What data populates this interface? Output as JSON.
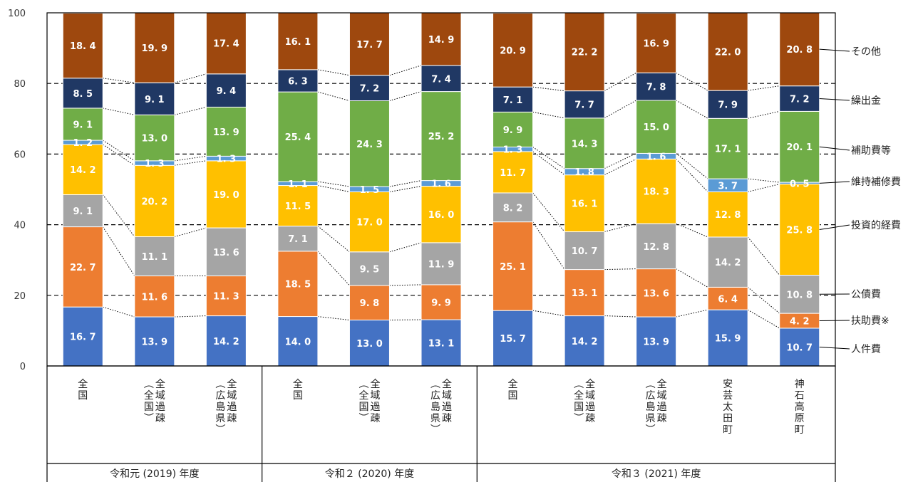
{
  "chart_data": {
    "type": "bar",
    "stacked": true,
    "ylim": [
      0,
      100
    ],
    "yticks": [
      "0",
      "20",
      "40",
      "60",
      "80",
      "100"
    ],
    "gridlines": "dashed",
    "categories": [
      "全国",
      "全域過疎（全国）",
      "全域過疎（広島県）",
      "全国",
      "全域過疎（全国）",
      "全域過疎（広島県）",
      "全国",
      "全域過疎（全国）",
      "全域過疎（広島県）",
      "安芸太田町",
      "神石高原町"
    ],
    "category_lines": [
      [
        "全国"
      ],
      [
        "（全国）",
        "全域過疎"
      ],
      [
        "（広島県）",
        "全域過疎"
      ],
      [
        "全国"
      ],
      [
        "（全国）",
        "全域過疎"
      ],
      [
        "（広島県）",
        "全域過疎"
      ],
      [
        "全国"
      ],
      [
        "（全国）",
        "全域過疎"
      ],
      [
        "（広島県）",
        "全域過疎"
      ],
      [
        "安芸太田町"
      ],
      [
        "神石高原町"
      ]
    ],
    "groups": [
      {
        "label": "令和元 (2019) 年度",
        "start": 0,
        "end": 2
      },
      {
        "label": "令和２ (2020) 年度",
        "start": 3,
        "end": 5
      },
      {
        "label": "令和３ (2021) 年度",
        "start": 6,
        "end": 10
      }
    ],
    "series": [
      {
        "name": "人件費",
        "color": "#4472c4",
        "label_dark": false,
        "values": [
          16.7,
          13.9,
          14.2,
          14.0,
          13.0,
          13.1,
          15.7,
          14.2,
          13.9,
          15.9,
          10.7
        ]
      },
      {
        "name": "扶助費※",
        "color": "#ed7d31",
        "label_dark": false,
        "values": [
          22.7,
          11.6,
          11.3,
          18.5,
          9.8,
          9.9,
          25.1,
          13.1,
          13.6,
          6.4,
          4.2
        ]
      },
      {
        "name": "公債費",
        "color": "#a5a5a5",
        "label_dark": false,
        "values": [
          9.1,
          11.1,
          13.6,
          7.1,
          9.5,
          11.9,
          8.2,
          10.7,
          12.8,
          14.2,
          10.8
        ]
      },
      {
        "name": "投資的経費",
        "color": "#ffc000",
        "label_dark": false,
        "values": [
          14.2,
          20.2,
          19.0,
          11.5,
          17.0,
          16.0,
          11.7,
          16.1,
          18.3,
          12.8,
          25.8
        ]
      },
      {
        "name": "維持補修費",
        "color": "#5b9bd5",
        "label_dark": false,
        "values": [
          1.2,
          1.3,
          1.3,
          1.1,
          1.5,
          1.6,
          1.3,
          1.8,
          1.6,
          3.7,
          0.5
        ]
      },
      {
        "name": "補助費等",
        "color": "#70ad47",
        "label_dark": false,
        "values": [
          9.1,
          13.0,
          13.9,
          25.4,
          24.3,
          25.2,
          9.9,
          14.3,
          15.0,
          17.1,
          20.1
        ]
      },
      {
        "name": "繰出金",
        "color": "#203864",
        "label_dark": false,
        "values": [
          8.5,
          9.1,
          9.4,
          6.3,
          7.2,
          7.4,
          7.1,
          7.7,
          7.8,
          7.9,
          7.2
        ]
      },
      {
        "name": "その他",
        "color": "#9e480e",
        "label_dark": false,
        "values": [
          18.4,
          19.9,
          17.4,
          16.1,
          17.7,
          14.9,
          20.9,
          22.2,
          16.9,
          22.0,
          20.8
        ]
      }
    ],
    "value_labels": [
      [
        "16. 7",
        "13. 9",
        "14. 2",
        "14. 0",
        "13. 0",
        "13. 1",
        "15. 7",
        "14. 2",
        "13. 9",
        "15. 9",
        "10. 7"
      ],
      [
        "22. 7",
        "11. 6",
        "11. 3",
        "18. 5",
        "9. 8",
        "9. 9",
        "25. 1",
        "13. 1",
        "13. 6",
        "6. 4",
        "4. 2"
      ],
      [
        "9. 1",
        "11. 1",
        "13. 6",
        "7. 1",
        "9. 5",
        "11. 9",
        "8. 2",
        "10. 7",
        "12. 8",
        "14. 2",
        "10. 8"
      ],
      [
        "14. 2",
        "20. 2",
        "19. 0",
        "11. 5",
        "17. 0",
        "16. 0",
        "11. 7",
        "16. 1",
        "18. 3",
        "12. 8",
        "25. 8"
      ],
      [
        "1. 2",
        "1. 3",
        "1. 3",
        "1. 1",
        "1. 5",
        "1. 6",
        "1. 3",
        "1. 8",
        "1. 6",
        "3. 7",
        "0. 5"
      ],
      [
        "9. 1",
        "13. 0",
        "13. 9",
        "25. 4",
        "24. 3",
        "25. 2",
        "9. 9",
        "14. 3",
        "15. 0",
        "17. 1",
        "20. 1"
      ],
      [
        "8. 5",
        "9. 1",
        "9. 4",
        "6. 3",
        "7. 2",
        "7. 4",
        "7. 1",
        "7. 7",
        "7. 8",
        "7. 9",
        "7. 2"
      ],
      [
        "18. 4",
        "19. 9",
        "17. 4",
        "16. 1",
        "17. 7",
        "14. 9",
        "20. 9",
        "22. 2",
        "16. 9",
        "22. 0",
        "20. 8"
      ]
    ],
    "legend_labels": [
      "人件費",
      "扶助費※",
      "公債費",
      "投資的経費",
      "維持補修費",
      "補助費等",
      "繰出金",
      "その他"
    ]
  }
}
